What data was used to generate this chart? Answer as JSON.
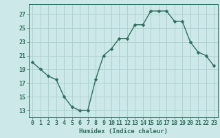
{
  "x": [
    0,
    1,
    2,
    3,
    4,
    5,
    6,
    7,
    8,
    9,
    10,
    11,
    12,
    13,
    14,
    15,
    16,
    17,
    18,
    19,
    20,
    21,
    22,
    23
  ],
  "y": [
    20.0,
    19.0,
    18.0,
    17.5,
    15.0,
    13.5,
    13.0,
    13.0,
    17.5,
    21.0,
    22.0,
    23.5,
    23.5,
    25.5,
    25.5,
    27.5,
    27.5,
    27.5,
    26.0,
    26.0,
    23.0,
    21.5,
    21.0,
    19.5
  ],
  "line_color": "#2d6e5e",
  "marker": "D",
  "marker_size": 2.5,
  "bg_color": "#cce8e8",
  "grid_color": "#aacece",
  "xlabel": "Humidex (Indice chaleur)",
  "xlim": [
    -0.5,
    23.5
  ],
  "ylim": [
    12,
    28.5
  ],
  "yticks": [
    13,
    15,
    17,
    19,
    21,
    23,
    25,
    27
  ],
  "xticks": [
    0,
    1,
    2,
    3,
    4,
    5,
    6,
    7,
    8,
    9,
    10,
    11,
    12,
    13,
    14,
    15,
    16,
    17,
    18,
    19,
    20,
    21,
    22,
    23
  ],
  "label_fontsize": 6.5,
  "tick_fontsize": 6.0
}
